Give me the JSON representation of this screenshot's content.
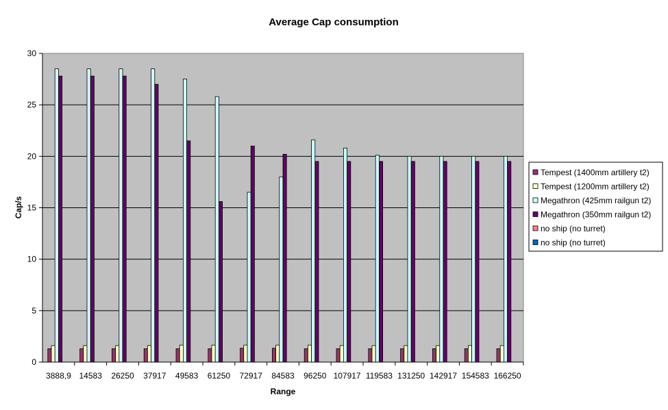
{
  "chart_data": {
    "type": "bar",
    "title": "Average Cap consumption",
    "xlabel": "Range",
    "ylabel": "Cap/s",
    "ylim": [
      0,
      30
    ],
    "yticks": [
      0,
      5,
      10,
      15,
      20,
      25,
      30
    ],
    "grid": true,
    "legend_position": "right",
    "plot_background": "#c0c0c0",
    "categories": [
      "3888,9",
      "14583",
      "26250",
      "37917",
      "49583",
      "61250",
      "72917",
      "84583",
      "96250",
      "107917",
      "119583",
      "131250",
      "142917",
      "154583",
      "166250"
    ],
    "series": [
      {
        "name": "Tempest (1400mm artillery t2)",
        "color": "#993366",
        "values": [
          1.3,
          1.3,
          1.3,
          1.3,
          1.3,
          1.3,
          1.35,
          1.35,
          1.3,
          1.3,
          1.3,
          1.3,
          1.3,
          1.3,
          1.3
        ]
      },
      {
        "name": "Tempest (1200mm artillery t2)",
        "color": "#ffffcc",
        "values": [
          1.6,
          1.6,
          1.6,
          1.6,
          1.65,
          1.65,
          1.65,
          1.65,
          1.65,
          1.6,
          1.6,
          1.6,
          1.6,
          1.6,
          1.6
        ]
      },
      {
        "name": "Megathron (425mm railgun t2)",
        "color": "#ccffff",
        "values": [
          28.5,
          28.5,
          28.5,
          28.5,
          27.5,
          25.8,
          16.5,
          18.0,
          21.6,
          20.8,
          20.1,
          20.0,
          20.0,
          20.0,
          20.0
        ]
      },
      {
        "name": "Megathron (350mm railgun t2)",
        "color": "#660066",
        "values": [
          27.8,
          27.8,
          27.8,
          27.0,
          21.5,
          15.6,
          21.0,
          20.2,
          19.5,
          19.5,
          19.5,
          19.5,
          19.5,
          19.5,
          19.5
        ]
      },
      {
        "name": "no ship (no turret)",
        "color": "#ff8080",
        "values": [
          0,
          0,
          0,
          0,
          0,
          0,
          0,
          0,
          0,
          0,
          0,
          0,
          0,
          0,
          0
        ]
      },
      {
        "name": "no ship (no turret)",
        "color": "#0066cc",
        "values": [
          0,
          0,
          0,
          0,
          0,
          0,
          0,
          0,
          0,
          0,
          0,
          0,
          0,
          0,
          0
        ]
      }
    ]
  }
}
